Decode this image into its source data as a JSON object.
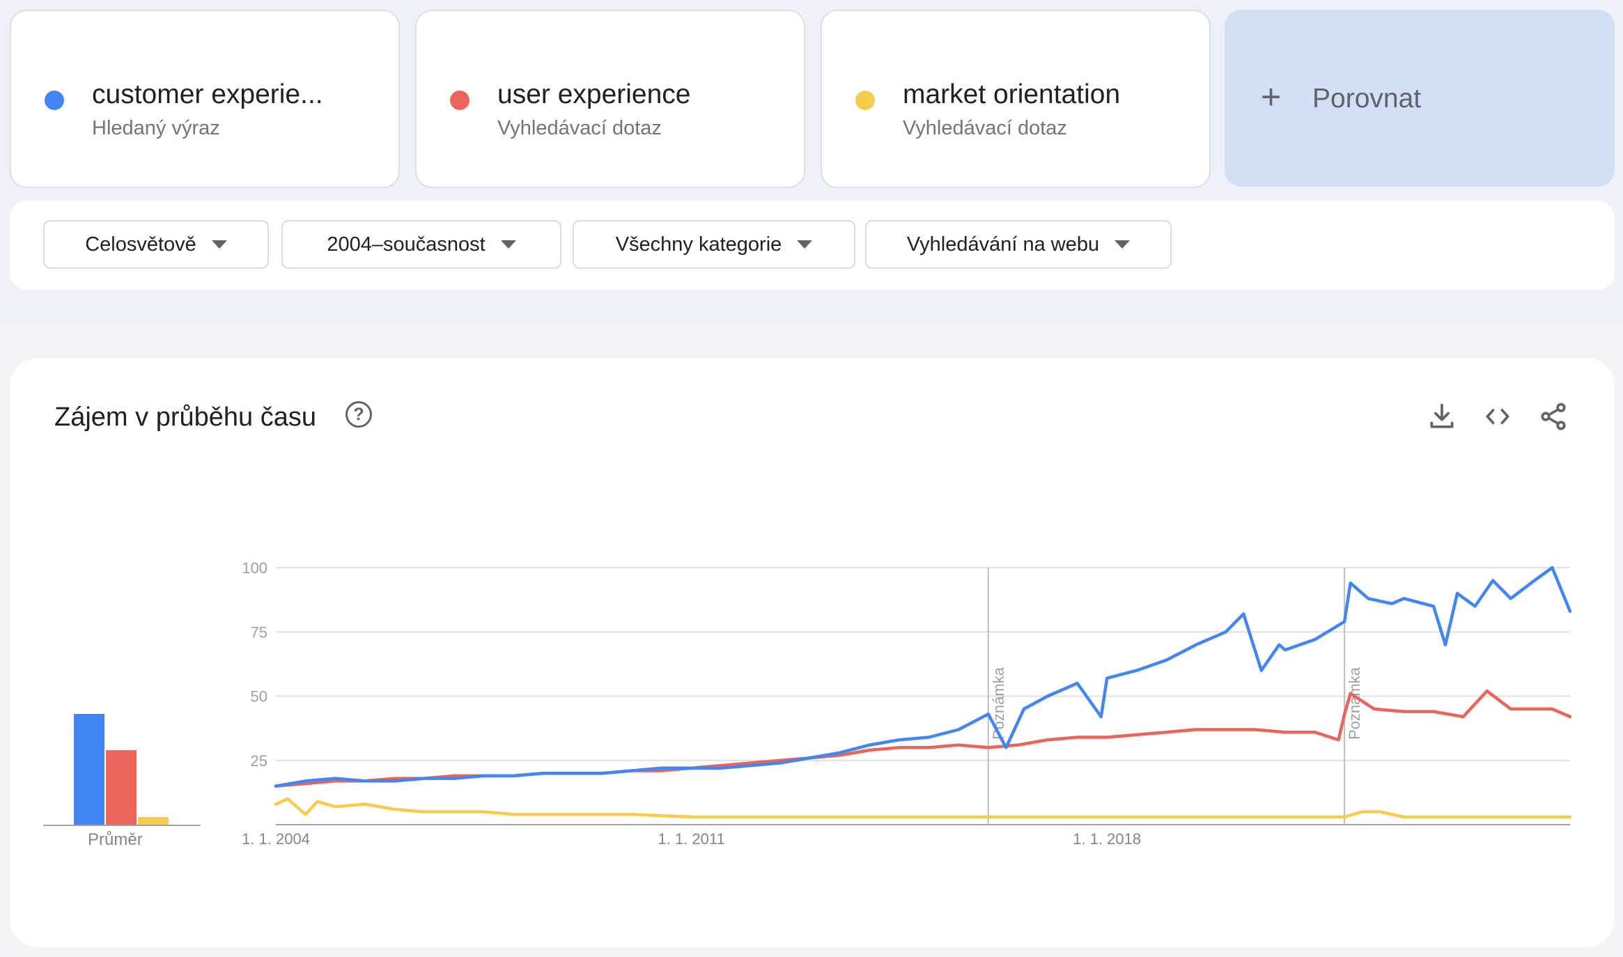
{
  "terms": [
    {
      "name": "customer experie...",
      "type": "Hledaný výraz",
      "color": "#4285f4"
    },
    {
      "name": "user experience",
      "type": "Vyhledávací dotaz",
      "color": "#ea6459"
    },
    {
      "name": "market orientation",
      "type": "Vyhledávací dotaz",
      "color": "#f7cb4d"
    }
  ],
  "compare": {
    "icon": "plus-icon",
    "label": "Porovnat"
  },
  "filters": [
    {
      "label": "Celosvětově"
    },
    {
      "label": "2004–současnost"
    },
    {
      "label": "Všechny kategorie"
    },
    {
      "label": "Vyhledávání na webu"
    }
  ],
  "panel": {
    "title": "Zájem v průběhu času",
    "help_icon": "question-circle-icon",
    "help_glyph": "?",
    "tools": [
      "download-icon",
      "embed-code-icon",
      "share-icon"
    ]
  },
  "averages": {
    "label": "Průměr",
    "values": [
      43,
      29,
      3
    ]
  },
  "chart_data": {
    "type": "line",
    "x_ticks": [
      "1. 1. 2004",
      "1. 1. 2011",
      "1. 1. 2018"
    ],
    "y_ticks": [
      "25",
      "50",
      "75",
      "100"
    ],
    "ylim": [
      0,
      100
    ],
    "xlim": [
      2004.0,
      2025.8
    ],
    "grid": true,
    "annotations": [
      {
        "x": 2016.0,
        "label": "Poznámka"
      },
      {
        "x": 2022.0,
        "label": "Poznámka"
      }
    ],
    "series": [
      {
        "name": "customer experie...",
        "color": "#4285f4",
        "points": [
          [
            2004.0,
            15
          ],
          [
            2004.5,
            17
          ],
          [
            2005.0,
            18
          ],
          [
            2005.5,
            17
          ],
          [
            2006.0,
            17
          ],
          [
            2006.5,
            18
          ],
          [
            2007.0,
            18
          ],
          [
            2007.5,
            19
          ],
          [
            2008.0,
            19
          ],
          [
            2008.5,
            20
          ],
          [
            2009.0,
            20
          ],
          [
            2009.5,
            20
          ],
          [
            2010.0,
            21
          ],
          [
            2010.5,
            22
          ],
          [
            2011.0,
            22
          ],
          [
            2011.5,
            22
          ],
          [
            2012.0,
            23
          ],
          [
            2012.5,
            24
          ],
          [
            2013.0,
            26
          ],
          [
            2013.5,
            28
          ],
          [
            2014.0,
            31
          ],
          [
            2014.5,
            33
          ],
          [
            2015.0,
            34
          ],
          [
            2015.5,
            37
          ],
          [
            2016.0,
            43
          ],
          [
            2016.3,
            30
          ],
          [
            2016.6,
            45
          ],
          [
            2017.0,
            50
          ],
          [
            2017.5,
            55
          ],
          [
            2017.9,
            42
          ],
          [
            2018.0,
            57
          ],
          [
            2018.5,
            60
          ],
          [
            2019.0,
            64
          ],
          [
            2019.5,
            70
          ],
          [
            2020.0,
            75
          ],
          [
            2020.3,
            82
          ],
          [
            2020.6,
            60
          ],
          [
            2020.9,
            70
          ],
          [
            2021.0,
            68
          ],
          [
            2021.5,
            72
          ],
          [
            2022.0,
            79
          ],
          [
            2022.1,
            94
          ],
          [
            2022.4,
            88
          ],
          [
            2022.8,
            86
          ],
          [
            2023.0,
            88
          ],
          [
            2023.5,
            85
          ],
          [
            2023.7,
            70
          ],
          [
            2023.9,
            90
          ],
          [
            2024.2,
            85
          ],
          [
            2024.5,
            95
          ],
          [
            2024.8,
            88
          ],
          [
            2025.2,
            95
          ],
          [
            2025.5,
            100
          ],
          [
            2025.8,
            83
          ]
        ]
      },
      {
        "name": "user experience",
        "color": "#ea6459",
        "points": [
          [
            2004.0,
            15
          ],
          [
            2004.5,
            16
          ],
          [
            2005.0,
            17
          ],
          [
            2005.5,
            17
          ],
          [
            2006.0,
            18
          ],
          [
            2006.5,
            18
          ],
          [
            2007.0,
            19
          ],
          [
            2007.5,
            19
          ],
          [
            2008.0,
            19
          ],
          [
            2008.5,
            20
          ],
          [
            2009.0,
            20
          ],
          [
            2009.5,
            20
          ],
          [
            2010.0,
            21
          ],
          [
            2010.5,
            21
          ],
          [
            2011.0,
            22
          ],
          [
            2011.5,
            23
          ],
          [
            2012.0,
            24
          ],
          [
            2012.5,
            25
          ],
          [
            2013.0,
            26
          ],
          [
            2013.5,
            27
          ],
          [
            2014.0,
            29
          ],
          [
            2014.5,
            30
          ],
          [
            2015.0,
            30
          ],
          [
            2015.5,
            31
          ],
          [
            2016.0,
            30
          ],
          [
            2016.5,
            31
          ],
          [
            2017.0,
            33
          ],
          [
            2017.5,
            34
          ],
          [
            2018.0,
            34
          ],
          [
            2018.5,
            35
          ],
          [
            2019.0,
            36
          ],
          [
            2019.5,
            37
          ],
          [
            2020.0,
            37
          ],
          [
            2020.5,
            37
          ],
          [
            2021.0,
            36
          ],
          [
            2021.5,
            36
          ],
          [
            2021.9,
            33
          ],
          [
            2022.0,
            43
          ],
          [
            2022.1,
            51
          ],
          [
            2022.5,
            45
          ],
          [
            2023.0,
            44
          ],
          [
            2023.5,
            44
          ],
          [
            2024.0,
            42
          ],
          [
            2024.4,
            52
          ],
          [
            2024.8,
            45
          ],
          [
            2025.2,
            45
          ],
          [
            2025.5,
            45
          ],
          [
            2025.8,
            42
          ]
        ]
      },
      {
        "name": "market orientation",
        "color": "#f7cb4d",
        "points": [
          [
            2004.0,
            8
          ],
          [
            2004.2,
            10
          ],
          [
            2004.5,
            4
          ],
          [
            2004.7,
            9
          ],
          [
            2005.0,
            7
          ],
          [
            2005.5,
            8
          ],
          [
            2006.0,
            6
          ],
          [
            2006.5,
            5
          ],
          [
            2007.0,
            5
          ],
          [
            2007.5,
            5
          ],
          [
            2008.0,
            4
          ],
          [
            2009.0,
            4
          ],
          [
            2010.0,
            4
          ],
          [
            2011.0,
            3
          ],
          [
            2012.0,
            3
          ],
          [
            2013.0,
            3
          ],
          [
            2014.0,
            3
          ],
          [
            2015.0,
            3
          ],
          [
            2016.0,
            3
          ],
          [
            2017.0,
            3
          ],
          [
            2018.0,
            3
          ],
          [
            2019.0,
            3
          ],
          [
            2020.0,
            3
          ],
          [
            2021.0,
            3
          ],
          [
            2022.0,
            3
          ],
          [
            2022.3,
            5
          ],
          [
            2022.6,
            5
          ],
          [
            2023.0,
            3
          ],
          [
            2024.0,
            3
          ],
          [
            2025.0,
            3
          ],
          [
            2025.8,
            3
          ]
        ]
      }
    ]
  }
}
